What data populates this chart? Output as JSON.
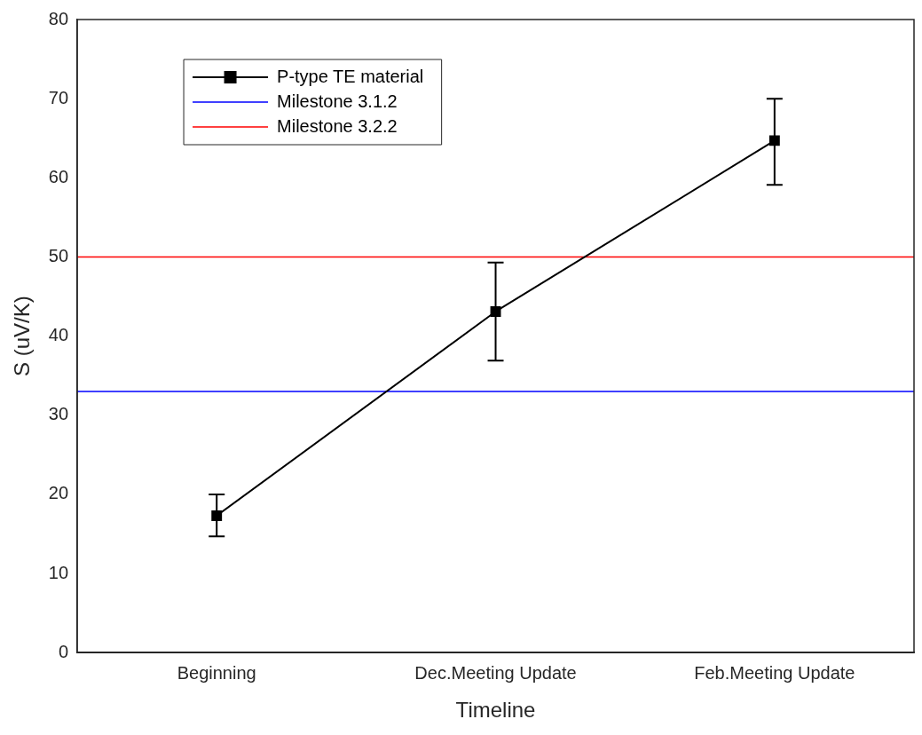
{
  "chart_data": {
    "type": "line",
    "xlabel": "Timeline",
    "ylabel": "S (uV/K)",
    "categories": [
      "Beginning",
      "Dec.Meeting Update",
      "Feb.Meeting Update"
    ],
    "series": [
      {
        "name": "P-type TE material",
        "color": "#000000",
        "values": [
          17.3,
          43.1,
          64.7
        ],
        "errors": [
          [
            14.7,
            20.0
          ],
          [
            36.9,
            49.3
          ],
          [
            59.1,
            70.0
          ]
        ]
      }
    ],
    "ref_lines": [
      {
        "axis": "y",
        "value": 33,
        "label": "Milestone 3.1.2",
        "color": "#0000ff"
      },
      {
        "axis": "y",
        "value": 50,
        "label": "Milestone 3.2.2",
        "color": "#ff0000"
      }
    ],
    "ylim": [
      0,
      80
    ],
    "yticks": [
      0,
      10,
      20,
      30,
      40,
      50,
      60,
      70,
      80
    ],
    "grid": false,
    "legend": "top left",
    "marker": "square",
    "line_style": "solid"
  }
}
